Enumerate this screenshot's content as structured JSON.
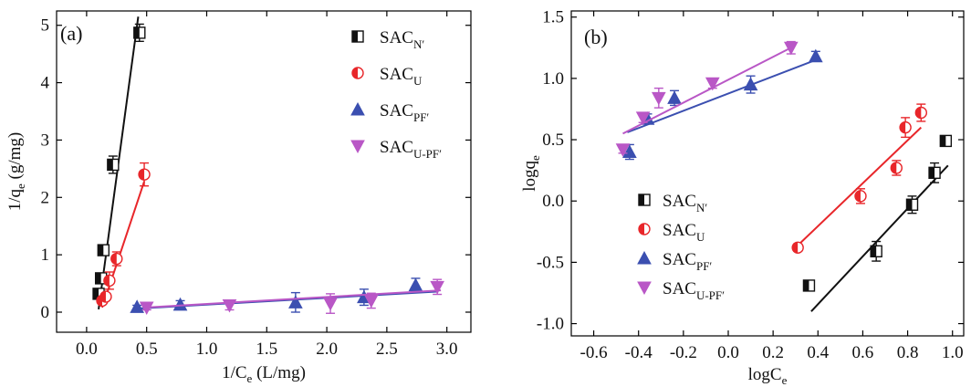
{
  "colors": {
    "N": "#111111",
    "U": "#e8262a",
    "PF": "#3b4fb0",
    "UPF": "#b957c6"
  },
  "chart_data": [
    {
      "type": "scatter",
      "panel_label": "(a)",
      "xlabel": {
        "main": "1/C",
        "sub": "e",
        "rest": " (L/mg)"
      },
      "ylabel": {
        "main": "1/q",
        "sub": "e",
        "rest": " (g/mg)"
      },
      "xlim": [
        -0.25,
        3.2
      ],
      "ylim": [
        -0.35,
        5.25
      ],
      "xticks": [
        0.0,
        0.5,
        1.0,
        1.5,
        2.0,
        2.5,
        3.0
      ],
      "xtick_labels": [
        "0.0",
        "0.5",
        "1.0",
        "1.5",
        "2.0",
        "2.5",
        "3.0"
      ],
      "yticks": [
        0,
        1,
        2,
        3,
        4,
        5
      ],
      "ytick_labels": [
        "0",
        "1",
        "2",
        "3",
        "4",
        "5"
      ],
      "legend_position": "top-right",
      "series": [
        {
          "key": "N",
          "name": "SAC",
          "name_sub": "N′",
          "marker": "square-half",
          "color_key": "N",
          "points": [
            {
              "x": 0.1,
              "y": 0.32,
              "err": 0.06
            },
            {
              "x": 0.12,
              "y": 0.59,
              "err": 0.06
            },
            {
              "x": 0.14,
              "y": 1.08,
              "err": 0.06
            },
            {
              "x": 0.22,
              "y": 2.57,
              "err": 0.15
            },
            {
              "x": 0.44,
              "y": 4.87,
              "err": 0.15
            }
          ],
          "fit": [
            [
              0.1,
              0.05
            ],
            [
              0.43,
              5.15
            ]
          ]
        },
        {
          "key": "U",
          "name": "SAC",
          "name_sub": "U",
          "marker": "circle-half",
          "color_key": "U",
          "points": [
            {
              "x": 0.13,
              "y": 0.2,
              "err": 0.05
            },
            {
              "x": 0.16,
              "y": 0.27,
              "err": 0.06
            },
            {
              "x": 0.19,
              "y": 0.55,
              "err": 0.15
            },
            {
              "x": 0.25,
              "y": 0.93,
              "err": 0.12
            },
            {
              "x": 0.48,
              "y": 2.4,
              "err": 0.2
            }
          ],
          "fit": [
            [
              0.13,
              0.08
            ],
            [
              0.48,
              2.28
            ]
          ]
        },
        {
          "key": "PF",
          "name": "SAC",
          "name_sub": "PF′",
          "marker": "triangle-up",
          "color_key": "PF",
          "points": [
            {
              "x": 0.42,
              "y": 0.09,
              "err": 0.03
            },
            {
              "x": 0.78,
              "y": 0.13,
              "err": 0.07
            },
            {
              "x": 1.74,
              "y": 0.17,
              "err": 0.17
            },
            {
              "x": 2.31,
              "y": 0.26,
              "err": 0.14
            },
            {
              "x": 2.74,
              "y": 0.47,
              "err": 0.12
            }
          ],
          "fit": [
            [
              0.4,
              0.06
            ],
            [
              2.93,
              0.36
            ]
          ]
        },
        {
          "key": "UPF",
          "name": "SAC",
          "name_sub": "U-PF′",
          "marker": "triangle-down",
          "color_key": "UPF",
          "points": [
            {
              "x": 0.5,
              "y": 0.08,
              "err": 0.04
            },
            {
              "x": 1.19,
              "y": 0.12,
              "err": 0.08
            },
            {
              "x": 2.03,
              "y": 0.15,
              "err": 0.17
            },
            {
              "x": 2.37,
              "y": 0.2,
              "err": 0.13
            },
            {
              "x": 2.92,
              "y": 0.44,
              "err": 0.13
            }
          ],
          "fit": [
            [
              0.48,
              0.08
            ],
            [
              2.95,
              0.38
            ]
          ]
        }
      ]
    },
    {
      "type": "scatter",
      "panel_label": "(b)",
      "xlabel": {
        "main": "logC",
        "sub": "e",
        "rest": ""
      },
      "ylabel": {
        "main": "logq",
        "sub": "e",
        "rest": ""
      },
      "xlim": [
        -0.7,
        1.05
      ],
      "ylim": [
        -1.1,
        1.55
      ],
      "xticks": [
        -0.6,
        -0.4,
        -0.2,
        0.0,
        0.2,
        0.4,
        0.6,
        0.8,
        1.0
      ],
      "xtick_labels": [
        "-0.6",
        "-0.4",
        "-0.2",
        "0.0",
        "0.2",
        "0.4",
        "0.6",
        "0.8",
        "1.0"
      ],
      "yticks": [
        -1.0,
        -0.5,
        0.0,
        0.5,
        1.0,
        1.5
      ],
      "ytick_labels": [
        "-1.0",
        "-0.5",
        "0.0",
        "0.5",
        "1.0",
        "1.5"
      ],
      "legend_position": "bottom-left",
      "series": [
        {
          "key": "N",
          "name": "SAC",
          "name_sub": "N′",
          "marker": "square-half",
          "color_key": "N",
          "points": [
            {
              "x": 0.36,
              "y": -0.69,
              "err": 0.03
            },
            {
              "x": 0.66,
              "y": -0.41,
              "err": 0.08
            },
            {
              "x": 0.82,
              "y": -0.03,
              "err": 0.07
            },
            {
              "x": 0.92,
              "y": 0.23,
              "err": 0.08
            },
            {
              "x": 0.97,
              "y": 0.49,
              "err": 0.04
            }
          ],
          "fit": [
            [
              0.37,
              -0.9
            ],
            [
              0.98,
              0.29
            ]
          ]
        },
        {
          "key": "U",
          "name": "SAC",
          "name_sub": "U",
          "marker": "circle-half",
          "color_key": "U",
          "points": [
            {
              "x": 0.31,
              "y": -0.38,
              "err": 0.03
            },
            {
              "x": 0.59,
              "y": 0.04,
              "err": 0.06
            },
            {
              "x": 0.75,
              "y": 0.27,
              "err": 0.06
            },
            {
              "x": 0.79,
              "y": 0.6,
              "err": 0.08
            },
            {
              "x": 0.86,
              "y": 0.72,
              "err": 0.07
            }
          ],
          "fit": [
            [
              0.3,
              -0.38
            ],
            [
              0.86,
              0.6
            ]
          ]
        },
        {
          "key": "PF",
          "name": "SAC",
          "name_sub": "PF′",
          "marker": "triangle-up",
          "color_key": "PF",
          "points": [
            {
              "x": -0.44,
              "y": 0.4,
              "err": 0.06
            },
            {
              "x": -0.36,
              "y": 0.67,
              "err": 0.04
            },
            {
              "x": -0.24,
              "y": 0.84,
              "err": 0.06
            },
            {
              "x": 0.1,
              "y": 0.95,
              "err": 0.07
            },
            {
              "x": 0.39,
              "y": 1.18,
              "err": 0.04
            }
          ],
          "fit": [
            [
              -0.45,
              0.56
            ],
            [
              0.39,
              1.15
            ]
          ]
        },
        {
          "key": "UPF",
          "name": "SAC",
          "name_sub": "U-PF′",
          "marker": "triangle-down",
          "color_key": "UPF",
          "points": [
            {
              "x": -0.47,
              "y": 0.42,
              "err": 0.03
            },
            {
              "x": -0.38,
              "y": 0.68,
              "err": 0.04
            },
            {
              "x": -0.31,
              "y": 0.84,
              "err": 0.08
            },
            {
              "x": -0.07,
              "y": 0.96,
              "err": 0.04
            },
            {
              "x": 0.28,
              "y": 1.25,
              "err": 0.05
            }
          ],
          "fit": [
            [
              -0.47,
              0.55
            ],
            [
              0.29,
              1.26
            ]
          ]
        }
      ]
    }
  ]
}
